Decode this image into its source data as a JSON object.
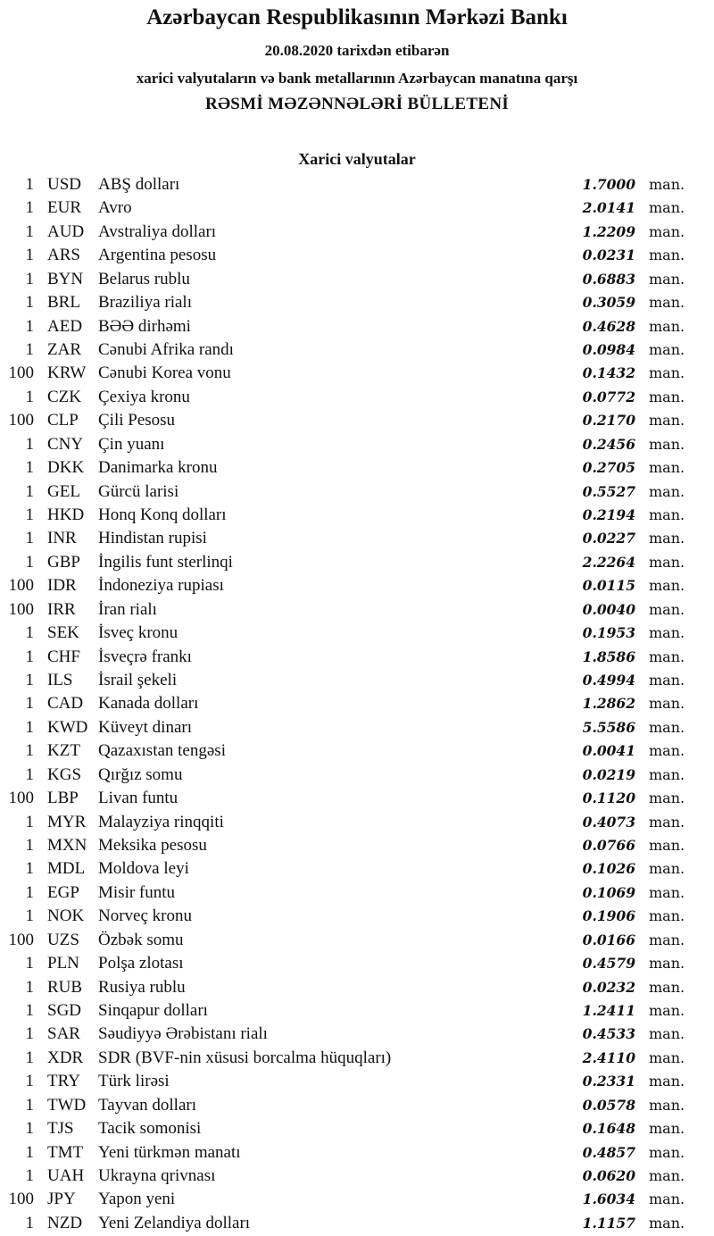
{
  "header": {
    "title": "Azərbaycan Respublikasının Mərkəzi Bankı",
    "date_line": "20.08.2020 tarixdən etibarən",
    "subtitle": "xarici valyutaların və bank metallarının Azərbaycan manatına qarşı",
    "bulletin": "RƏSMİ MƏZƏNNƏLƏRİ BÜLLETENİ",
    "section": "Xarici valyutalar"
  },
  "unit": "man.",
  "rates": [
    [
      "1",
      "USD",
      "ABŞ dolları",
      "1.7000"
    ],
    [
      "1",
      "EUR",
      "Avro",
      "2.0141"
    ],
    [
      "1",
      "AUD",
      "Avstraliya dolları",
      "1.2209"
    ],
    [
      "1",
      "ARS",
      "Argentina pesosu",
      "0.0231"
    ],
    [
      "1",
      "BYN",
      "Belarus rublu",
      "0.6883"
    ],
    [
      "1",
      "BRL",
      "Braziliya rialı",
      "0.3059"
    ],
    [
      "1",
      "AED",
      "BƏƏ dirhəmi",
      "0.4628"
    ],
    [
      "1",
      "ZAR",
      "Cənubi Afrika randı",
      "0.0984"
    ],
    [
      "100",
      "KRW",
      "Cənubi Korea vonu",
      "0.1432"
    ],
    [
      "1",
      "CZK",
      "Çexiya kronu",
      "0.0772"
    ],
    [
      "100",
      "CLP",
      "Çili Pesosu",
      "0.2170"
    ],
    [
      "1",
      "CNY",
      "Çin yuanı",
      "0.2456"
    ],
    [
      "1",
      "DKK",
      "Danimarka kronu",
      "0.2705"
    ],
    [
      "1",
      "GEL",
      "Gürcü larisi",
      "0.5527"
    ],
    [
      "1",
      "HKD",
      "Honq Konq dolları",
      "0.2194"
    ],
    [
      "1",
      "INR",
      "Hindistan rupisi",
      "0.0227"
    ],
    [
      "1",
      "GBP",
      "İngilis funt sterlinqi",
      "2.2264"
    ],
    [
      "100",
      "IDR",
      "İndoneziya rupiası",
      "0.0115"
    ],
    [
      "100",
      "IRR",
      "İran rialı",
      "0.0040"
    ],
    [
      "1",
      "SEK",
      "İsveç kronu",
      "0.1953"
    ],
    [
      "1",
      "CHF",
      "İsveçrə frankı",
      "1.8586"
    ],
    [
      "1",
      "ILS",
      "İsrail şekeli",
      "0.4994"
    ],
    [
      "1",
      "CAD",
      "Kanada dolları",
      "1.2862"
    ],
    [
      "1",
      "KWD",
      "Küveyt dinarı",
      "5.5586"
    ],
    [
      "1",
      "KZT",
      "Qazaxıstan tengəsi",
      "0.0041"
    ],
    [
      "1",
      "KGS",
      "Qırğız somu",
      "0.0219"
    ],
    [
      "100",
      "LBP",
      "Livan funtu",
      "0.1120"
    ],
    [
      "1",
      "MYR",
      "Malayziya rinqqiti",
      "0.4073"
    ],
    [
      "1",
      "MXN",
      "Meksika pesosu",
      "0.0766"
    ],
    [
      "1",
      "MDL",
      "Moldova leyi",
      "0.1026"
    ],
    [
      "1",
      "EGP",
      "Misir funtu",
      "0.1069"
    ],
    [
      "1",
      "NOK",
      "Norveç kronu",
      "0.1906"
    ],
    [
      "100",
      "UZS",
      "Özbək somu",
      "0.0166"
    ],
    [
      "1",
      "PLN",
      "Polşa zlotası",
      "0.4579"
    ],
    [
      "1",
      "RUB",
      "Rusiya rublu",
      "0.0232"
    ],
    [
      "1",
      "SGD",
      "Sinqapur dolları",
      "1.2411"
    ],
    [
      "1",
      "SAR",
      "Səudiyyə Ərəbistanı rialı",
      "0.4533"
    ],
    [
      "1",
      "XDR",
      "SDR (BVF-nin xüsusi borcalma hüquqları)",
      "2.4110"
    ],
    [
      "1",
      "TRY",
      "Türk lirəsi",
      "0.2331"
    ],
    [
      "1",
      "TWD",
      "Tayvan dolları",
      "0.0578"
    ],
    [
      "1",
      "TJS",
      "Tacik somonisi",
      "0.1648"
    ],
    [
      "1",
      "TMT",
      "Yeni türkmən manatı",
      "0.4857"
    ],
    [
      "1",
      "UAH",
      "Ukrayna qrivnası",
      "0.0620"
    ],
    [
      "100",
      "JPY",
      "Yapon yeni",
      "1.6034"
    ],
    [
      "1",
      "NZD",
      "Yeni Zelandiya dolları",
      "1.1157"
    ]
  ]
}
